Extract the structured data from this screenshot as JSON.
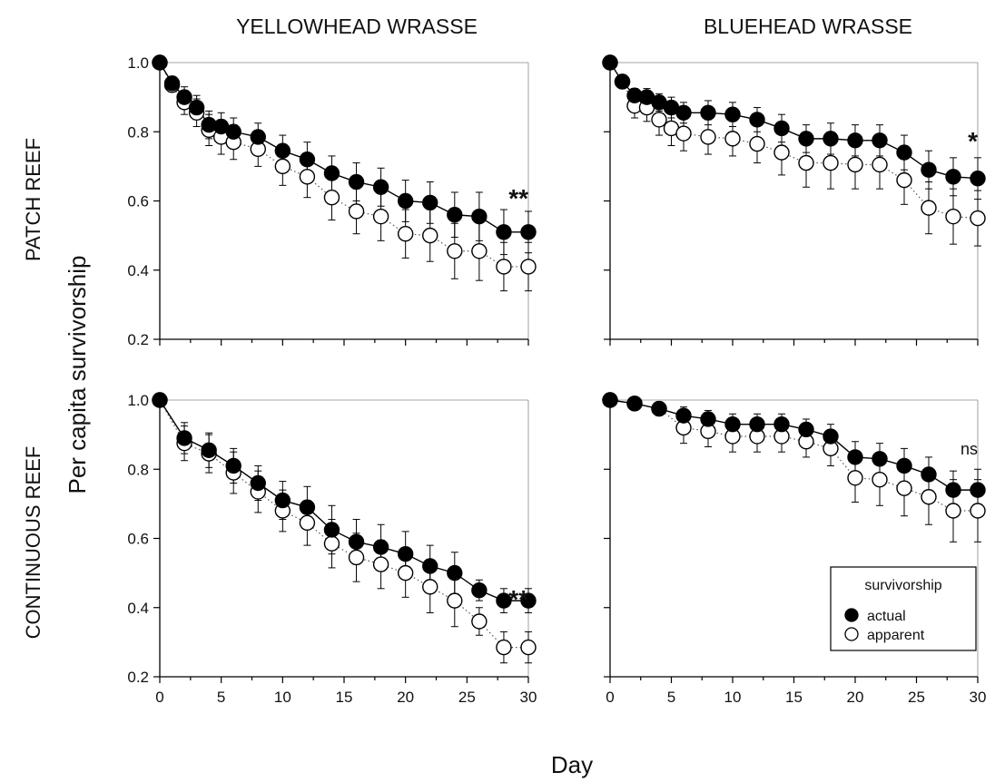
{
  "figure": {
    "column_titles": [
      "YELLOWHEAD WRASSE",
      "BLUEHEAD WRASSE"
    ],
    "row_titles": [
      "PATCH REEF",
      "CONTINUOUS REEF"
    ],
    "ylabel": "Per capita survivorship",
    "xlabel": "Day"
  },
  "legend": {
    "title": "survivorship",
    "items": [
      {
        "label": "actual",
        "marker": "filled-circle"
      },
      {
        "label": "apparent",
        "marker": "open-circle"
      }
    ],
    "placement": "lower-right of bottom-right panel"
  },
  "chart_data": [
    {
      "type": "line",
      "panel": "top-left",
      "title": "YELLOWHEAD WRASSE",
      "row": "PATCH REEF",
      "xlim": [
        0,
        30
      ],
      "ylim": [
        0.2,
        1.0
      ],
      "xticks": [
        0,
        5,
        10,
        15,
        20,
        25,
        30
      ],
      "yticks": [
        "0.2",
        "0.4",
        "0.6",
        "0.8",
        "1.0"
      ],
      "show_x_ticklabels": false,
      "show_y_ticklabels": true,
      "grid": false,
      "significance": "**",
      "series": [
        {
          "name": "actual",
          "x": [
            0,
            1,
            2,
            3,
            4,
            5,
            6,
            8,
            10,
            12,
            14,
            16,
            18,
            20,
            22,
            24,
            26,
            28,
            30
          ],
          "y": [
            1.0,
            0.94,
            0.9,
            0.87,
            0.82,
            0.815,
            0.8,
            0.785,
            0.745,
            0.72,
            0.68,
            0.655,
            0.64,
            0.6,
            0.595,
            0.56,
            0.555,
            0.51,
            0.51
          ],
          "err": [
            0,
            0.02,
            0.03,
            0.035,
            0.04,
            0.04,
            0.04,
            0.04,
            0.045,
            0.05,
            0.05,
            0.055,
            0.055,
            0.06,
            0.06,
            0.065,
            0.07,
            0.065,
            0.06
          ]
        },
        {
          "name": "apparent",
          "x": [
            0,
            1,
            2,
            3,
            4,
            5,
            6,
            8,
            10,
            12,
            14,
            16,
            18,
            20,
            22,
            24,
            26,
            28,
            30
          ],
          "y": [
            1.0,
            0.935,
            0.885,
            0.855,
            0.805,
            0.785,
            0.77,
            0.75,
            0.7,
            0.67,
            0.61,
            0.57,
            0.555,
            0.505,
            0.5,
            0.455,
            0.455,
            0.41,
            0.41
          ],
          "err": [
            0,
            0.02,
            0.035,
            0.04,
            0.045,
            0.05,
            0.05,
            0.05,
            0.055,
            0.06,
            0.065,
            0.065,
            0.07,
            0.07,
            0.075,
            0.08,
            0.085,
            0.07,
            0.07
          ]
        }
      ]
    },
    {
      "type": "line",
      "panel": "top-right",
      "title": "BLUEHEAD WRASSE",
      "row": "PATCH REEF",
      "xlim": [
        0,
        30
      ],
      "ylim": [
        0.2,
        1.0
      ],
      "xticks": [
        0,
        5,
        10,
        15,
        20,
        25,
        30
      ],
      "yticks": [
        "0.2",
        "0.4",
        "0.6",
        "0.8",
        "1.0"
      ],
      "show_x_ticklabels": false,
      "show_y_ticklabels": false,
      "grid": false,
      "significance": "*",
      "series": [
        {
          "name": "actual",
          "x": [
            0,
            1,
            2,
            3,
            4,
            5,
            6,
            8,
            10,
            12,
            14,
            16,
            18,
            20,
            22,
            24,
            26,
            28,
            30
          ],
          "y": [
            1.0,
            0.945,
            0.905,
            0.9,
            0.885,
            0.87,
            0.855,
            0.855,
            0.85,
            0.835,
            0.81,
            0.78,
            0.78,
            0.775,
            0.775,
            0.74,
            0.69,
            0.67,
            0.665
          ],
          "err": [
            0,
            0.015,
            0.02,
            0.025,
            0.025,
            0.03,
            0.03,
            0.035,
            0.035,
            0.035,
            0.04,
            0.04,
            0.045,
            0.045,
            0.045,
            0.05,
            0.055,
            0.055,
            0.06
          ]
        },
        {
          "name": "apparent",
          "x": [
            0,
            1,
            2,
            3,
            4,
            5,
            6,
            8,
            10,
            12,
            14,
            16,
            18,
            20,
            22,
            24,
            26,
            28,
            30
          ],
          "y": [
            1.0,
            0.945,
            0.875,
            0.87,
            0.835,
            0.81,
            0.795,
            0.785,
            0.78,
            0.765,
            0.74,
            0.71,
            0.71,
            0.705,
            0.705,
            0.66,
            0.58,
            0.555,
            0.55
          ],
          "err": [
            0,
            0.02,
            0.035,
            0.04,
            0.045,
            0.05,
            0.05,
            0.05,
            0.05,
            0.055,
            0.065,
            0.07,
            0.075,
            0.07,
            0.07,
            0.07,
            0.075,
            0.08,
            0.08
          ]
        }
      ]
    },
    {
      "type": "line",
      "panel": "bottom-left",
      "title": "YELLOWHEAD WRASSE",
      "row": "CONTINUOUS REEF",
      "xlim": [
        0,
        30
      ],
      "ylim": [
        0.2,
        1.0
      ],
      "xticks": [
        0,
        5,
        10,
        15,
        20,
        25,
        30
      ],
      "yticks": [
        "0.2",
        "0.4",
        "0.6",
        "0.8",
        "1.0"
      ],
      "show_x_ticklabels": true,
      "show_y_ticklabels": true,
      "grid": false,
      "significance": "**",
      "series": [
        {
          "name": "actual",
          "x": [
            0,
            2,
            4,
            6,
            8,
            10,
            12,
            14,
            16,
            18,
            20,
            22,
            24,
            26,
            28,
            30
          ],
          "y": [
            1.0,
            0.89,
            0.855,
            0.81,
            0.76,
            0.71,
            0.69,
            0.625,
            0.59,
            0.575,
            0.555,
            0.52,
            0.5,
            0.45,
            0.42,
            0.42
          ],
          "err": [
            0,
            0.045,
            0.05,
            0.05,
            0.05,
            0.055,
            0.06,
            0.07,
            0.065,
            0.065,
            0.065,
            0.06,
            0.06,
            0.03,
            0.035,
            0.035
          ]
        },
        {
          "name": "apparent",
          "x": [
            0,
            2,
            4,
            6,
            8,
            10,
            12,
            14,
            16,
            18,
            20,
            22,
            24,
            26,
            28,
            30
          ],
          "y": [
            1.0,
            0.875,
            0.845,
            0.79,
            0.735,
            0.68,
            0.645,
            0.585,
            0.545,
            0.525,
            0.5,
            0.46,
            0.42,
            0.36,
            0.285,
            0.285
          ],
          "err": [
            0,
            0.05,
            0.055,
            0.06,
            0.06,
            0.06,
            0.065,
            0.07,
            0.07,
            0.07,
            0.07,
            0.075,
            0.075,
            0.04,
            0.045,
            0.045
          ]
        }
      ]
    },
    {
      "type": "line",
      "panel": "bottom-right",
      "title": "BLUEHEAD WRASSE",
      "row": "CONTINUOUS REEF",
      "xlim": [
        0,
        30
      ],
      "ylim": [
        0.2,
        1.0
      ],
      "xticks": [
        0,
        5,
        10,
        15,
        20,
        25,
        30
      ],
      "yticks": [
        "0.2",
        "0.4",
        "0.6",
        "0.8",
        "1.0"
      ],
      "show_x_ticklabels": true,
      "show_y_ticklabels": false,
      "grid": false,
      "significance": "ns",
      "series": [
        {
          "name": "actual",
          "x": [
            0,
            2,
            4,
            6,
            8,
            10,
            12,
            14,
            16,
            18,
            20,
            22,
            24,
            26,
            28,
            30
          ],
          "y": [
            1.0,
            0.99,
            0.975,
            0.955,
            0.945,
            0.93,
            0.93,
            0.93,
            0.915,
            0.895,
            0.835,
            0.83,
            0.81,
            0.785,
            0.74,
            0.74
          ],
          "err": [
            0,
            0.01,
            0.015,
            0.025,
            0.025,
            0.03,
            0.03,
            0.03,
            0.03,
            0.035,
            0.045,
            0.045,
            0.05,
            0.05,
            0.055,
            0.06
          ]
        },
        {
          "name": "apparent",
          "x": [
            0,
            2,
            4,
            6,
            8,
            10,
            12,
            14,
            16,
            18,
            20,
            22,
            24,
            26,
            28,
            30
          ],
          "y": [
            1.0,
            0.99,
            0.975,
            0.92,
            0.91,
            0.895,
            0.895,
            0.895,
            0.88,
            0.86,
            0.775,
            0.77,
            0.745,
            0.72,
            0.68,
            0.68
          ],
          "err": [
            0,
            0.01,
            0.02,
            0.045,
            0.045,
            0.045,
            0.045,
            0.045,
            0.045,
            0.05,
            0.07,
            0.075,
            0.08,
            0.08,
            0.09,
            0.09
          ]
        }
      ]
    }
  ]
}
